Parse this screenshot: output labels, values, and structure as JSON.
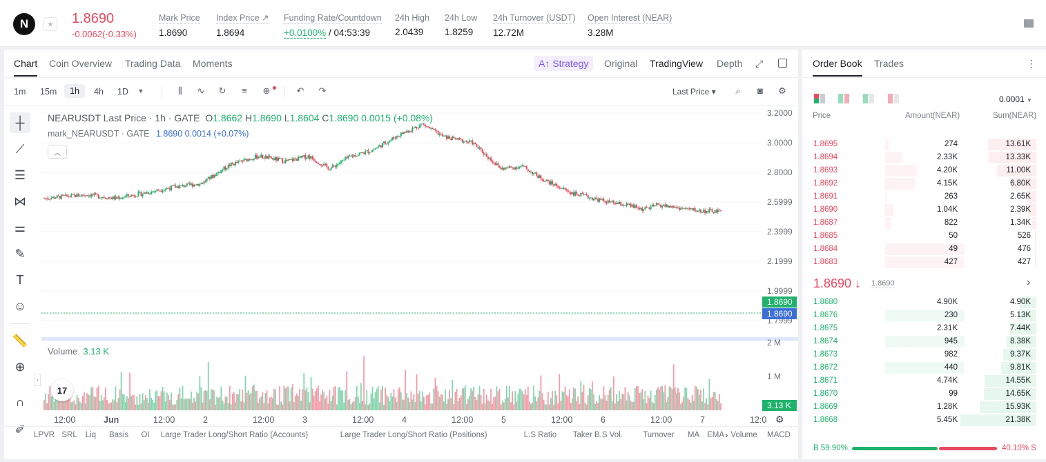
{
  "ticker": {
    "logo": "N",
    "last_price": "1.8690",
    "change": "-0.0062(-0.33%)",
    "stats": [
      {
        "label": "Mark Price",
        "value": "1.8690"
      },
      {
        "label": "Index Price ↗",
        "value": "1.8694"
      },
      {
        "label": "Funding Rate/Countdown",
        "value_green": "+0.0100%",
        "value": " / 04:53:39"
      },
      {
        "label": "24h High",
        "value": "2.0439"
      },
      {
        "label": "24h Low",
        "value": "1.8259"
      },
      {
        "label": "24h Turnover (USDT)",
        "value": "12.72M"
      },
      {
        "label": "Open Interest (NEAR)",
        "value": "3.28M"
      }
    ]
  },
  "chart_tabs": [
    "Chart",
    "Coin Overview",
    "Trading Data",
    "Moments"
  ],
  "view_tabs": {
    "strategy": "A↑ Strategy",
    "original": "Original",
    "tradingview": "TradingView",
    "depth": "Depth"
  },
  "intervals": [
    "1m",
    "15m",
    "1h",
    "4h",
    "1D"
  ],
  "price_type": "Last Price ▾",
  "legend": {
    "symbol": "NEARUSDT Last Price · 1h · GATE",
    "o": "1.8662",
    "h": "1.8690",
    "l": "1.8604",
    "c": "1.8690",
    "chg": "0.0015 (+0.08%)",
    "mark": "mark_NEARUSDT · GATE",
    "mark_val": "1.8690 0.0014 (+0.07%)"
  },
  "price_axis": [
    "3.2000",
    "3.0000",
    "2.8000",
    "2.5999",
    "2.3999",
    "2.1999",
    "1.9999",
    "1.7999"
  ],
  "price_tags": {
    "last": "1.8690",
    "mark": "1.8690"
  },
  "volume": {
    "label": "Volume",
    "value": "3.13 K",
    "axis": [
      "2 M",
      "1 M"
    ],
    "tag": "3.13 K"
  },
  "time_axis": [
    "12:00",
    "Jun",
    "12:00",
    "2",
    "12:00",
    "3",
    "12:00",
    "4",
    "12:00",
    "5",
    "12:00",
    "6",
    "12:00",
    "7",
    "12:0"
  ],
  "indicators": [
    "LPVR",
    "SRL",
    "Liq",
    "Basis",
    "OI",
    "Large Trader Long/Short Ratio (Accounts)",
    "Large Trader Long/Short Ratio (Positions)",
    "L.S Ratio",
    "Taker B.S Vol.",
    "Turnover",
    "MA",
    "EMA",
    "Volume",
    "MACD"
  ],
  "orderbook": {
    "tabs": [
      "Order Book",
      "Trades"
    ],
    "precision": "0.0001",
    "headers": [
      "Price",
      "Amount(NEAR)",
      "Sum(NEAR)"
    ],
    "asks": [
      {
        "p": "1.8695",
        "a": "274",
        "s": "13.61K",
        "sf": 0.64,
        "af": 0.02
      },
      {
        "p": "1.8694",
        "a": "2.33K",
        "s": "13.33K",
        "sf": 0.63,
        "af": 0.11
      },
      {
        "p": "1.8693",
        "a": "4.20K",
        "s": "11.00K",
        "sf": 0.52,
        "af": 0.2
      },
      {
        "p": "1.8692",
        "a": "4.15K",
        "s": "6.80K",
        "sf": 0.32,
        "af": 0.19
      },
      {
        "p": "1.8691",
        "a": "263",
        "s": "2.65K",
        "sf": 0.12,
        "af": 0.01
      },
      {
        "p": "1.8690",
        "a": "1.04K",
        "s": "2.39K",
        "sf": 0.11,
        "af": 0.05
      },
      {
        "p": "1.8687",
        "a": "822",
        "s": "1.34K",
        "sf": 0.06,
        "af": 0.04
      },
      {
        "p": "1.8685",
        "a": "50",
        "s": "526",
        "sf": 0.02,
        "af": 0.0
      },
      {
        "p": "1.8684",
        "a": "49",
        "s": "476",
        "sf": 0.02,
        "af": 0.5
      },
      {
        "p": "1.8683",
        "a": "427",
        "s": "427",
        "sf": 0.02,
        "af": 0.5
      }
    ],
    "mid_price": "1.8690 ↓",
    "mid_mark": "1.8690",
    "bids": [
      {
        "p": "1.8680",
        "a": "4.90K",
        "s": "4.90K",
        "sf": 0.22,
        "af": 0.0
      },
      {
        "p": "1.8676",
        "a": "230",
        "s": "5.13K",
        "sf": 0.24,
        "af": 0.5
      },
      {
        "p": "1.8675",
        "a": "2.31K",
        "s": "7.44K",
        "sf": 0.35,
        "af": 0.0
      },
      {
        "p": "1.8674",
        "a": "945",
        "s": "8.38K",
        "sf": 0.39,
        "af": 0.5
      },
      {
        "p": "1.8673",
        "a": "982",
        "s": "9.37K",
        "sf": 0.44,
        "af": 0.0
      },
      {
        "p": "1.8672",
        "a": "440",
        "s": "9.81K",
        "sf": 0.46,
        "af": 0.5
      },
      {
        "p": "1.8671",
        "a": "4.74K",
        "s": "14.55K",
        "sf": 0.68,
        "af": 0.0
      },
      {
        "p": "1.8670",
        "a": "99",
        "s": "14.65K",
        "sf": 0.69,
        "af": 0.0
      },
      {
        "p": "1.8669",
        "a": "1.28K",
        "s": "15.93K",
        "sf": 0.75,
        "af": 0.0
      },
      {
        "p": "1.8668",
        "a": "5.45K",
        "s": "21.38K",
        "sf": 1.0,
        "af": 0.0
      }
    ],
    "buy_ratio": "B 59.90%",
    "sell_ratio": "40.10% S",
    "buy_fraction": 0.599
  },
  "colors": {
    "up": "#20b26c",
    "down": "#e84a5f",
    "mark": "#3a6ed8"
  }
}
